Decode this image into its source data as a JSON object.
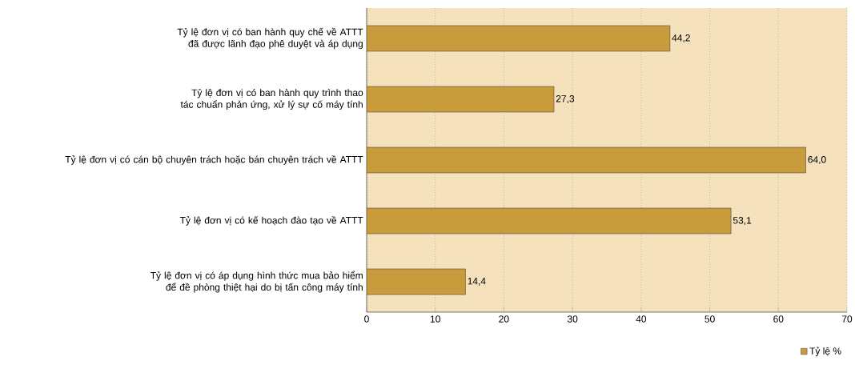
{
  "chart_data": {
    "type": "bar",
    "orientation": "horizontal",
    "categories": [
      "Tỷ lệ đơn vị có ban hành quy chế về ATTT đã được lãnh đạo phê duyệt và áp dụng",
      "Tỷ lệ đơn vị có ban hành quy trình thao tác chuẩn phản ứng, xử lý sự cố máy tính",
      "Tỷ lệ đơn vị có cán bộ chuyên trách hoặc bán chuyên trách về ATTT",
      "Tỷ lệ đơn vị có kế hoạch đào tạo về ATTT",
      "Tỷ lệ đơn vị có áp dụng hình thức mua bảo hiểm để đề phòng thiệt hại do bị tấn công máy tính"
    ],
    "series": [
      {
        "name": "Tỷ lệ %",
        "color": "#c89b3c",
        "values": [
          44.2,
          27.3,
          64.0,
          53.1,
          14.4
        ],
        "value_labels": [
          "44,2",
          "27,3",
          "64,0",
          "53,1",
          "14,4"
        ]
      }
    ],
    "xlim": [
      0,
      70
    ],
    "xticks": [
      0,
      10,
      20,
      30,
      40,
      50,
      60,
      70
    ],
    "grid": "x",
    "legend": "bottom right"
  }
}
